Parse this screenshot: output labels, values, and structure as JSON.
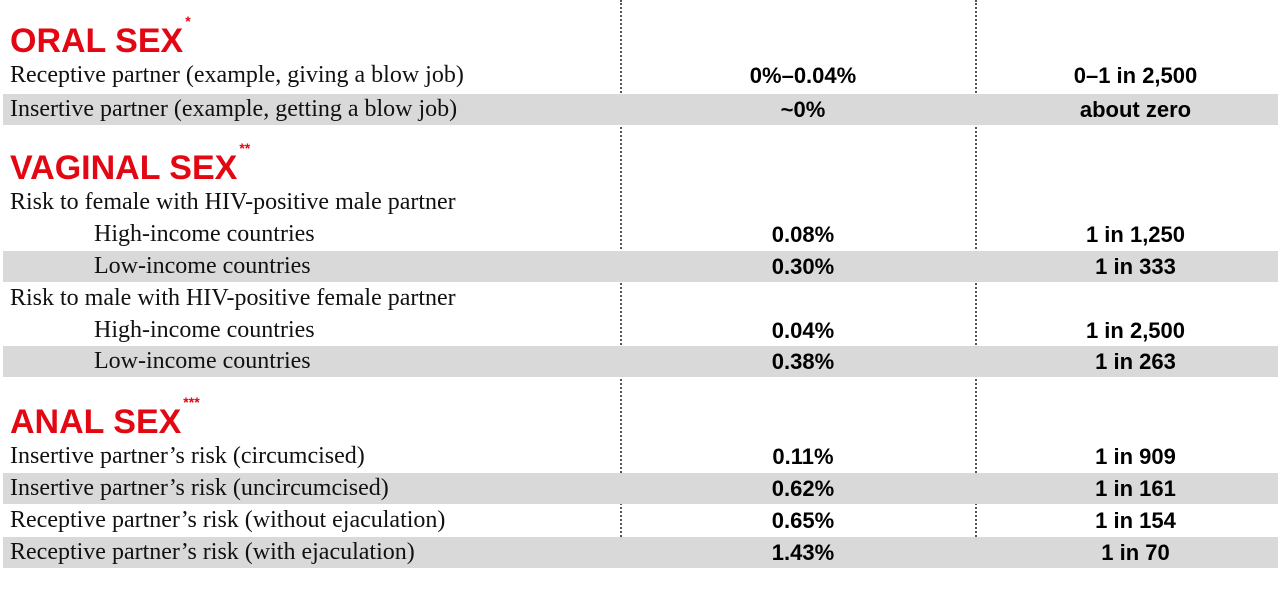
{
  "sections": {
    "oral": {
      "title": "ORAL SEX",
      "mark": "*",
      "rows": [
        {
          "label": "Receptive partner (example, giving a blow job)",
          "percent": "0%–0.04%",
          "odds": "0–1 in 2,500"
        },
        {
          "label": "Insertive partner (example, getting a blow job)",
          "percent": "~0%",
          "odds": "about zero"
        }
      ]
    },
    "vaginal": {
      "title": "VAGINAL SEX",
      "mark": "**",
      "rows": [
        {
          "label": "Risk to female with HIV-positive male partner",
          "percent": "",
          "odds": ""
        },
        {
          "label": "High-income countries",
          "percent": "0.08%",
          "odds": "1 in 1,250"
        },
        {
          "label": "Low-income countries",
          "percent": "0.30%",
          "odds": "1 in 333"
        },
        {
          "label": "Risk to male with HIV-positive female partner",
          "percent": "",
          "odds": ""
        },
        {
          "label": "High-income countries",
          "percent": "0.04%",
          "odds": "1 in 2,500"
        },
        {
          "label": "Low-income countries",
          "percent": "0.38%",
          "odds": "1 in 263"
        }
      ]
    },
    "anal": {
      "title": "ANAL SEX",
      "mark": "***",
      "rows": [
        {
          "label": "Insertive partner’s risk (circumcised)",
          "percent": "0.11%",
          "odds": "1 in 909"
        },
        {
          "label": "Insertive partner’s risk (uncircumcised)",
          "percent": "0.62%",
          "odds": "1 in 161"
        },
        {
          "label": "Receptive partner’s risk (without ejaculation)",
          "percent": "0.65%",
          "odds": "1 in 154"
        },
        {
          "label": "Receptive partner’s risk (with ejaculation)",
          "percent": "1.43%",
          "odds": "1 in 70"
        }
      ]
    }
  }
}
